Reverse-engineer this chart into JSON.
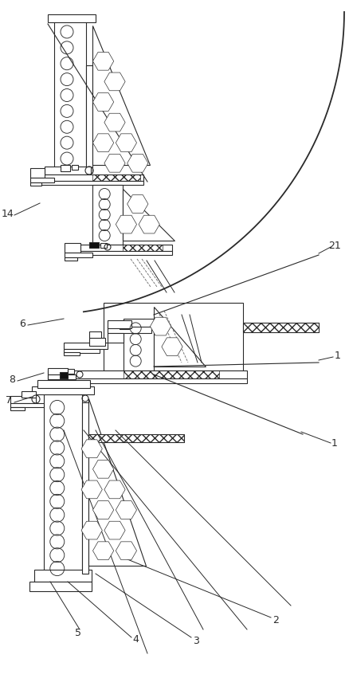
{
  "bg_color": "#ffffff",
  "line_color": "#2a2a2a",
  "fig_width": 4.38,
  "fig_height": 8.66,
  "dpi": 100,
  "lw": 0.8
}
